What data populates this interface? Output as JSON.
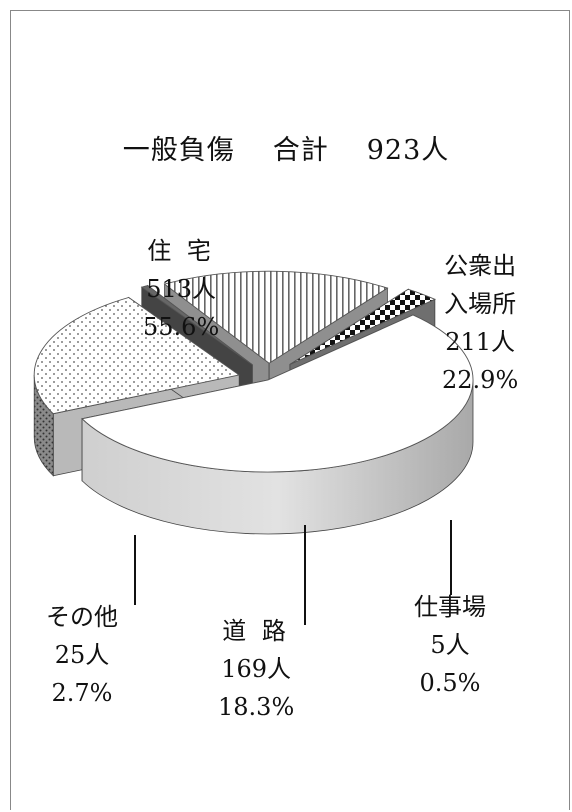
{
  "chart_data": {
    "type": "pie",
    "title": {
      "label": "一般負傷",
      "total_label": "合計",
      "total_value": "923人"
    },
    "three_d": true,
    "total": 923,
    "slices": [
      {
        "name": "住 宅",
        "count": 513,
        "count_label": "513人",
        "percent": 55.6,
        "percent_label": "55.6%",
        "pattern": "plain-white",
        "exploded": false
      },
      {
        "name": "公衆出入場所",
        "name_lines": [
          "公衆出",
          "入場所"
        ],
        "count": 211,
        "count_label": "211人",
        "percent": 22.9,
        "percent_label": "22.9%",
        "pattern": "dots",
        "exploded": true
      },
      {
        "name": "仕事場",
        "count": 5,
        "count_label": "5人",
        "percent": 0.5,
        "percent_label": "0.5%",
        "pattern": "dark",
        "exploded": true
      },
      {
        "name": "道 路",
        "count": 169,
        "count_label": "169人",
        "percent": 18.3,
        "percent_label": "18.3%",
        "pattern": "vertical-stripes",
        "exploded": true
      },
      {
        "name": "その他",
        "count": 25,
        "count_label": "25人",
        "percent": 2.7,
        "percent_label": "2.7%",
        "pattern": "checker",
        "exploded": true
      }
    ]
  }
}
